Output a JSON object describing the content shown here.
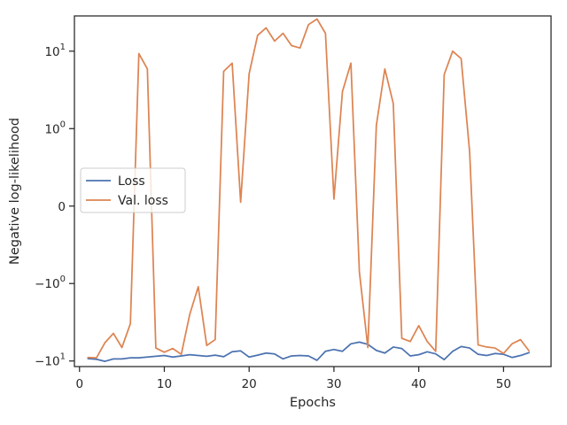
{
  "chart_data": {
    "type": "line",
    "xlabel": "Epochs",
    "ylabel": "Negative log-likelihood",
    "xlim": [
      -0.6,
      55.6
    ],
    "ylim": [
      -11.8,
      28.5
    ],
    "yscale": "symlog",
    "yscale_linthresh": 1,
    "grid": false,
    "legend_position": "center-left",
    "x_ticks": [
      {
        "value": 0,
        "label": "0"
      },
      {
        "value": 10,
        "label": "10"
      },
      {
        "value": 20,
        "label": "20"
      },
      {
        "value": 30,
        "label": "30"
      },
      {
        "value": 40,
        "label": "40"
      },
      {
        "value": 50,
        "label": "50"
      }
    ],
    "y_ticks": [
      {
        "value": 10,
        "base": "10",
        "exp": "1"
      },
      {
        "value": 1,
        "base": "10",
        "exp": "0"
      },
      {
        "value": 0,
        "base": "0",
        "exp": ""
      },
      {
        "value": -1,
        "base": "−10",
        "exp": "0"
      },
      {
        "value": -10,
        "base": "−10",
        "exp": "1"
      }
    ],
    "x": [
      1,
      2,
      3,
      4,
      5,
      6,
      7,
      8,
      9,
      10,
      11,
      12,
      13,
      14,
      15,
      16,
      17,
      18,
      19,
      20,
      21,
      22,
      23,
      24,
      25,
      26,
      27,
      28,
      29,
      30,
      31,
      32,
      33,
      34,
      35,
      36,
      37,
      38,
      39,
      40,
      41,
      42,
      43,
      44,
      45,
      46,
      47,
      48,
      49,
      50,
      51,
      52,
      53
    ],
    "series": [
      {
        "name": "Loss",
        "color": "#4c72b0",
        "values": [
          -9.3,
          -9.5,
          -10.1,
          -9.4,
          -9.4,
          -9.1,
          -9.1,
          -8.9,
          -8.7,
          -8.5,
          -8.9,
          -8.6,
          -8.3,
          -8.5,
          -8.7,
          -8.4,
          -8.8,
          -7.6,
          -7.4,
          -8.9,
          -8.4,
          -7.9,
          -8.1,
          -9.4,
          -8.6,
          -8.5,
          -8.6,
          -9.8,
          -7.5,
          -7.1,
          -7.5,
          -6.0,
          -5.7,
          -6.1,
          -7.3,
          -7.9,
          -6.6,
          -6.9,
          -8.6,
          -8.3,
          -7.6,
          -8.1,
          -9.6,
          -7.5,
          -6.5,
          -6.8,
          -8.2,
          -8.5,
          -8.0,
          -8.2,
          -9.0,
          -8.5,
          -7.8
        ]
      },
      {
        "name": "Val. loss",
        "color": "#dd8452",
        "values": [
          -9.0,
          -9.1,
          -5.8,
          -4.4,
          -6.7,
          -3.3,
          9.3,
          5.9,
          -6.8,
          -7.7,
          -6.9,
          -8.2,
          -2.5,
          -1.1,
          -6.3,
          -5.3,
          5.5,
          7.0,
          0.05,
          5.1,
          16.0,
          20.0,
          13.5,
          17.0,
          11.8,
          11.0,
          22.0,
          26.0,
          17.0,
          0.09,
          3.0,
          7.0,
          -0.85,
          -6.7,
          1.1,
          5.9,
          2.1,
          -5.1,
          -5.6,
          -3.5,
          -5.6,
          -7.5,
          5.0,
          10.0,
          8.0,
          0.7,
          -6.2,
          -6.6,
          -6.8,
          -8.0,
          -6.0,
          -5.3,
          -7.4
        ]
      }
    ]
  }
}
